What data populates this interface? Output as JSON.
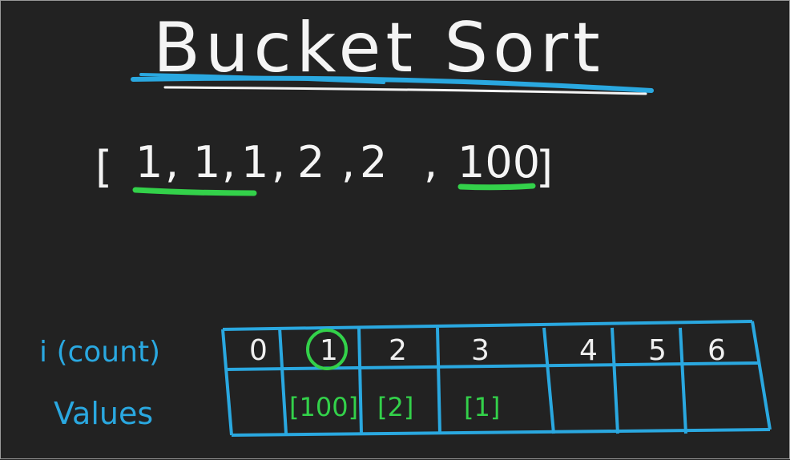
{
  "title": "Bucket Sort",
  "array": {
    "open_bracket": "[",
    "close_bracket": "]",
    "items": [
      "1",
      ",",
      "1",
      ",",
      "1",
      ",",
      "2",
      ",",
      "2",
      ",",
      "100"
    ]
  },
  "table": {
    "row_labels": {
      "count": "i (count)",
      "values": "Values"
    },
    "indices": [
      "0",
      "1",
      "2",
      "3",
      "4",
      "5",
      "6"
    ],
    "values": [
      "",
      "[100]",
      "[2]",
      "[1]",
      "",
      "",
      ""
    ]
  },
  "colors": {
    "background": "#222222",
    "chalk": "#f4f4f4",
    "blue": "#2aa8e0",
    "green": "#33d14a"
  }
}
